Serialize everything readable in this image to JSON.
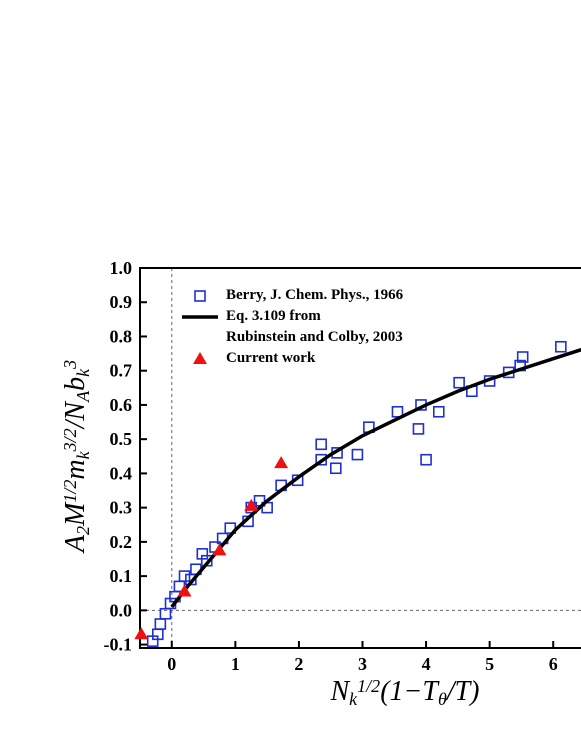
{
  "chart_data": {
    "type": "scatter",
    "x_label": [
      {
        "text": "N"
      },
      {
        "text": "k",
        "pos": "sub"
      },
      {
        "text": "1/2",
        "pos": "sup"
      },
      {
        "text": "(1−T"
      },
      {
        "text": "θ",
        "pos": "sub"
      },
      {
        "text": "/T)"
      }
    ],
    "y_label": [
      {
        "text": "A"
      },
      {
        "text": "2",
        "pos": "sub"
      },
      {
        "text": "M"
      },
      {
        "text": "1/2",
        "pos": "sup"
      },
      {
        "text": "m"
      },
      {
        "text": "k",
        "pos": "sub"
      },
      {
        "text": "3/2",
        "pos": "sup"
      },
      {
        "text": "/N"
      },
      {
        "text": "A",
        "pos": "sub"
      },
      {
        "text": "b"
      },
      {
        "text": "k",
        "pos": "sub"
      },
      {
        "text": "3",
        "pos": "sup"
      }
    ],
    "xlim": [
      -0.5,
      6.5
    ],
    "ylim": [
      -0.11,
      1.0
    ],
    "xticks": [
      0,
      1,
      2,
      3,
      4,
      5,
      6
    ],
    "yticks": [
      -0.1,
      {
        "value": 0,
        "label": "0.0"
      },
      0.1,
      0.2,
      0.3,
      0.4,
      0.5,
      0.6,
      0.7,
      0.8,
      0.9,
      {
        "value": 1,
        "label": "1.0"
      }
    ],
    "reference_lines": {
      "x": 0,
      "y": 0
    },
    "legend": "upper left",
    "series": [
      {
        "name": "Berry, J. Chem. Phys., 1966",
        "marker": "open-square",
        "color": "#1f2fd0",
        "x": [
          -0.3,
          -0.22,
          -0.18,
          -0.1,
          -0.02,
          0.05,
          0.12,
          0.2,
          0.3,
          0.38,
          0.48,
          0.55,
          0.68,
          0.8,
          0.92,
          1.2,
          1.25,
          1.38,
          1.5,
          1.72,
          1.98,
          2.35,
          2.35,
          2.58,
          2.6,
          2.92,
          3.1,
          3.55,
          3.88,
          3.92,
          4.0,
          4.2,
          4.52,
          4.72,
          5.0,
          5.3,
          5.48,
          5.52,
          6.12
        ],
        "values": [
          -0.09,
          -0.07,
          -0.04,
          -0.01,
          0.02,
          0.04,
          0.07,
          0.1,
          0.09,
          0.12,
          0.165,
          0.145,
          0.185,
          0.21,
          0.24,
          0.26,
          0.3,
          0.32,
          0.3,
          0.365,
          0.38,
          0.44,
          0.485,
          0.415,
          0.46,
          0.455,
          0.535,
          0.58,
          0.53,
          0.6,
          0.44,
          0.58,
          0.665,
          0.64,
          0.67,
          0.695,
          0.715,
          0.74,
          0.77
        ]
      },
      {
        "name": "Eq. 3.109 from\nRubinstein and Colby, 2003",
        "marker": "line",
        "color": "#000000",
        "x": [
          0,
          0.25,
          0.5,
          1,
          1.5,
          2,
          2.5,
          3,
          3.5,
          4,
          4.5,
          5,
          5.5,
          6,
          6.5
        ],
        "values": [
          0.01,
          0.07,
          0.125,
          0.235,
          0.32,
          0.39,
          0.455,
          0.51,
          0.555,
          0.6,
          0.64,
          0.675,
          0.705,
          0.735,
          0.765
        ]
      },
      {
        "name": "Current work",
        "marker": "triangle",
        "color": "#ee1111",
        "x": [
          -0.48,
          0.2,
          0.75,
          1.25,
          1.72
        ],
        "values": [
          -0.07,
          0.055,
          0.175,
          0.305,
          0.43
        ]
      }
    ]
  }
}
